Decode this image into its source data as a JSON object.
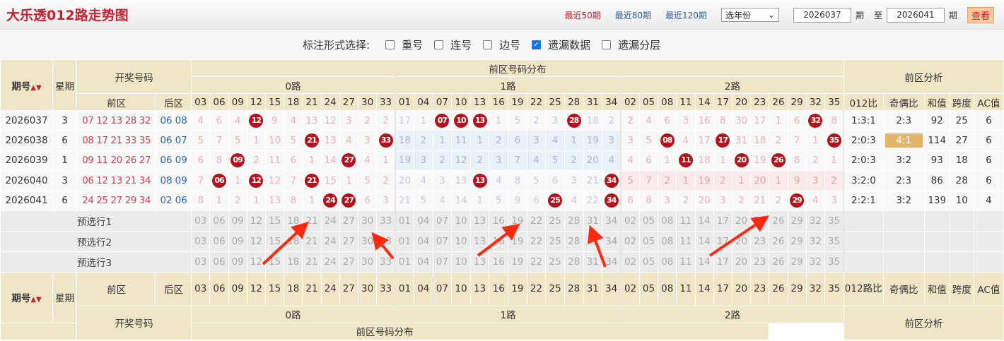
{
  "header": {
    "title": "大乐透012路走势图",
    "links": [
      {
        "label": "最近50期",
        "active": true
      },
      {
        "label": "最近80期",
        "active": false
      },
      {
        "label": "最近120期",
        "active": false
      }
    ],
    "year_select": "选年份",
    "from": "2026037",
    "unit": "期",
    "to_label": "至",
    "to": "2026041",
    "view_button": "查看"
  },
  "options": {
    "label": "标注形式选择:",
    "items": [
      {
        "label": "重号",
        "checked": false
      },
      {
        "label": "连号",
        "checked": false
      },
      {
        "label": "边号",
        "checked": false
      },
      {
        "label": "遗漏数据",
        "checked": true
      },
      {
        "label": "遗漏分层",
        "checked": false
      }
    ]
  },
  "table_head": {
    "issue": "期号",
    "sort_icon": "sort-icon",
    "weekday": "星期",
    "draw": "开奖号码",
    "front": "前区",
    "back": "后区",
    "dist": "前区号码分布",
    "analysis": "前区分析",
    "routes": [
      {
        "label": "0路",
        "nums": [
          "03",
          "06",
          "09",
          "12",
          "15",
          "18",
          "21",
          "24",
          "27",
          "30",
          "33"
        ]
      },
      {
        "label": "1路",
        "nums": [
          "01",
          "04",
          "07",
          "10",
          "13",
          "16",
          "19",
          "22",
          "25",
          "28",
          "31",
          "34"
        ]
      },
      {
        "label": "2路",
        "nums": [
          "02",
          "05",
          "08",
          "11",
          "14",
          "17",
          "20",
          "23",
          "26",
          "29",
          "32",
          "35"
        ]
      }
    ],
    "analysis_cols": [
      "012比",
      "奇偶比",
      "和值",
      "跨度",
      "AC值"
    ],
    "analysis_cols_bottom": [
      "012路比",
      "奇偶比",
      "和值",
      "跨度",
      "AC值"
    ]
  },
  "rows": [
    {
      "issue": "2026037",
      "weekday": "3",
      "front": [
        "07",
        "12",
        "13",
        "28",
        "32"
      ],
      "back": [
        "06",
        "08"
      ],
      "cells": [
        "4",
        "6",
        "4",
        "12",
        "9",
        "4",
        "13",
        "12",
        "3",
        "2",
        "2",
        "17",
        "1",
        "07",
        "10",
        "13",
        "1",
        "5",
        "2",
        "3",
        "28",
        "18",
        "2",
        "2",
        "4",
        "6",
        "3",
        "16",
        "8",
        "30",
        "17",
        "1",
        "6",
        "32",
        "8"
      ],
      "ratio": "1:3:1",
      "oddeven": "2:3",
      "sum": "92",
      "span": "25",
      "ac": "6"
    },
    {
      "issue": "2026038",
      "weekday": "6",
      "front": [
        "08",
        "17",
        "21",
        "33",
        "35"
      ],
      "back": [
        "06",
        "07"
      ],
      "cells": [
        "5",
        "7",
        "5",
        "1",
        "10",
        "5",
        "21",
        "13",
        "4",
        "3",
        "33",
        "18",
        "2",
        "1",
        "11",
        "1",
        "2",
        "6",
        "3",
        "4",
        "1",
        "19",
        "3",
        "3",
        "5",
        "08",
        "4",
        "17",
        "17",
        "31",
        "18",
        "2",
        "7",
        "1",
        "35"
      ],
      "ratio": "2:0:3",
      "oddeven": "4:1",
      "sum": "114",
      "span": "27",
      "ac": "6"
    },
    {
      "issue": "2026039",
      "weekday": "1",
      "front": [
        "09",
        "11",
        "20",
        "26",
        "27"
      ],
      "back": [
        "06",
        "09"
      ],
      "cells": [
        "6",
        "8",
        "09",
        "2",
        "11",
        "6",
        "1",
        "14",
        "27",
        "4",
        "1",
        "19",
        "3",
        "2",
        "12",
        "2",
        "3",
        "7",
        "4",
        "5",
        "2",
        "20",
        "4",
        "4",
        "6",
        "1",
        "11",
        "18",
        "1",
        "20",
        "19",
        "26",
        "8",
        "2",
        "1"
      ],
      "ratio": "2:0:3",
      "oddeven": "3:2",
      "sum": "93",
      "span": "18",
      "ac": "6"
    },
    {
      "issue": "2026040",
      "weekday": "3",
      "front": [
        "06",
        "12",
        "13",
        "21",
        "34"
      ],
      "back": [
        "08",
        "09"
      ],
      "cells": [
        "7",
        "06",
        "1",
        "12",
        "12",
        "7",
        "21",
        "15",
        "1",
        "5",
        "2",
        "20",
        "4",
        "3",
        "13",
        "13",
        "4",
        "8",
        "5",
        "6",
        "3",
        "21",
        "34",
        "5",
        "7",
        "2",
        "1",
        "19",
        "2",
        "1",
        "20",
        "1",
        "9",
        "3",
        "2"
      ],
      "ratio": "3:2:0",
      "oddeven": "2:3",
      "sum": "86",
      "span": "28",
      "ac": "6"
    },
    {
      "issue": "2026041",
      "weekday": "6",
      "front": [
        "24",
        "25",
        "27",
        "29",
        "34"
      ],
      "back": [
        "02",
        "06"
      ],
      "cells": [
        "8",
        "1",
        "2",
        "1",
        "13",
        "8",
        "1",
        "24",
        "27",
        "6",
        "3",
        "21",
        "5",
        "4",
        "14",
        "1",
        "5",
        "9",
        "6",
        "25",
        "4",
        "22",
        "34",
        "6",
        "8",
        "3",
        "2",
        "20",
        "3",
        "2",
        "21",
        "2",
        "29",
        "4",
        "3"
      ],
      "ratio": "2:2:1",
      "oddeven": "3:2",
      "sum": "139",
      "span": "10",
      "ac": "4"
    }
  ],
  "preselect": [
    "预选行1",
    "预选行2",
    "预选行3"
  ],
  "colors": {
    "ball": "#b4131c",
    "front": "#d0434f",
    "back": "#2a66ad",
    "header_bg": "#f1e5c8",
    "highlight": "#e3b46a",
    "arrow": "#ff2a10"
  }
}
